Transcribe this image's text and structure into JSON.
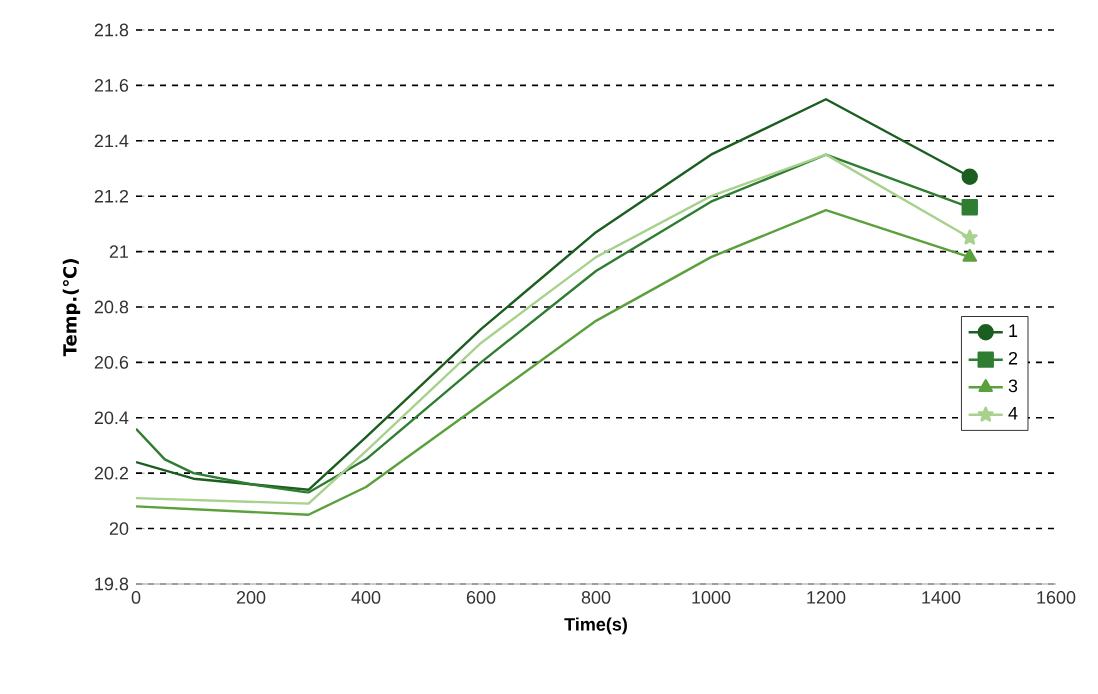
{
  "chart_data": {
    "type": "line",
    "xlabel": "Time(s)",
    "ylabel": "Temp.(℃)",
    "xlim": [
      0,
      1600
    ],
    "xticks": [
      0,
      200,
      400,
      600,
      800,
      1000,
      1200,
      1400,
      1600
    ],
    "ylim": [
      19.8,
      21.8
    ],
    "yticks": [
      19.8,
      20,
      20.2,
      20.4,
      20.6,
      20.8,
      21,
      21.2,
      21.4,
      21.6,
      21.8
    ],
    "grid": "y",
    "legend": "right",
    "line_style": "solid",
    "series": [
      {
        "name": "1",
        "color": "#1b5e20",
        "x": [
          0,
          100,
          200,
          300,
          400,
          600,
          800,
          1000,
          1200,
          1450
        ],
        "values": [
          20.24,
          20.18,
          20.16,
          20.14,
          20.33,
          20.72,
          21.07,
          21.35,
          21.55,
          21.27
        ]
      },
      {
        "name": "2",
        "color": "#2e7d32",
        "x": [
          0,
          50,
          100,
          200,
          300,
          400,
          600,
          800,
          1000,
          1200,
          1450
        ],
        "values": [
          20.36,
          20.25,
          20.2,
          20.16,
          20.13,
          20.25,
          20.6,
          20.93,
          21.18,
          21.35,
          21.16
        ]
      },
      {
        "name": "3",
        "color": "#5aa03c",
        "x": [
          0,
          300,
          400,
          600,
          800,
          1000,
          1200,
          1450
        ],
        "values": [
          20.08,
          20.05,
          20.15,
          20.45,
          20.75,
          20.98,
          21.15,
          20.98
        ]
      },
      {
        "name": "4",
        "color": "#a9d18e",
        "x": [
          0,
          300,
          400,
          600,
          800,
          1000,
          1200,
          1450
        ],
        "values": [
          20.11,
          20.09,
          20.28,
          20.67,
          20.98,
          21.2,
          21.35,
          21.05
        ]
      },
      {
        "type": "scatter",
        "color": "#1b5e20",
        "marker": "circle",
        "x": [
          1450
        ],
        "values": [
          21.27
        ]
      },
      {
        "type": "scatter",
        "color": "#2e7d32",
        "marker": "square",
        "x": [
          1450
        ],
        "values": [
          21.16
        ]
      },
      {
        "type": "scatter",
        "color": "#5aa03c",
        "marker": "triangle",
        "x": [
          1450
        ],
        "values": [
          20.98
        ]
      },
      {
        "type": "scatter",
        "color": "#a9d18e",
        "marker": "star",
        "x": [
          1450
        ],
        "values": [
          21.05
        ]
      }
    ]
  }
}
